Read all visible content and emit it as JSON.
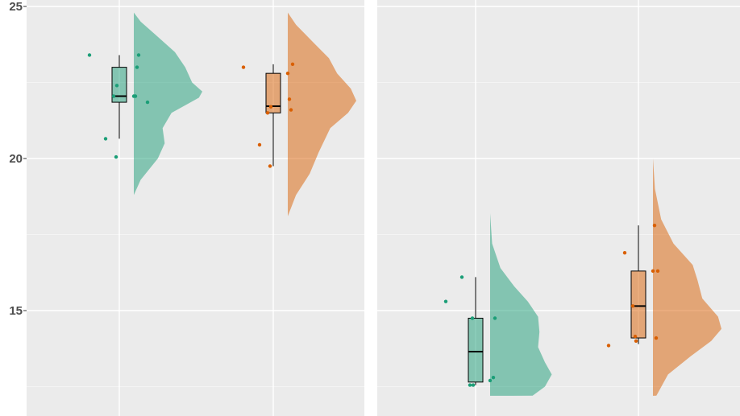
{
  "chart_data": {
    "type": "raincloud",
    "y_axis": {
      "ylim": [
        12.2,
        25.2
      ],
      "ticks": [
        15,
        20,
        25
      ],
      "tick_labels": [
        "15",
        "20",
        "25"
      ],
      "grid": true
    },
    "colors": {
      "green": "#1b9e77",
      "orange": "#d95f02",
      "panel_bg": "#ebebeb",
      "grid": "#ffffff"
    },
    "panels": [
      {
        "groups": [
          {
            "color": "green",
            "box": {
              "whisker_low": 20.65,
              "q1": 21.85,
              "median": 22.05,
              "q3": 23.0,
              "whisker_high": 23.4
            },
            "points": [
              23.4,
              22.4,
              22.05,
              20.65,
              20.05,
              23.4,
              23.0,
              22.05,
              22.05,
              21.85
            ],
            "density": [
              [
                18.8,
                0
              ],
              [
                19.3,
                0.1
              ],
              [
                20.0,
                0.35
              ],
              [
                20.5,
                0.45
              ],
              [
                21.0,
                0.42
              ],
              [
                21.5,
                0.55
              ],
              [
                22.0,
                0.95
              ],
              [
                22.2,
                1.0
              ],
              [
                22.5,
                0.85
              ],
              [
                23.0,
                0.75
              ],
              [
                23.5,
                0.6
              ],
              [
                24.0,
                0.35
              ],
              [
                24.5,
                0.1
              ],
              [
                24.8,
                0
              ]
            ]
          },
          {
            "color": "orange",
            "box": {
              "whisker_low": 19.75,
              "q1": 21.5,
              "median": 21.72,
              "q3": 22.8,
              "whisker_high": 23.1
            },
            "points": [
              23.0,
              21.7,
              21.5,
              20.45,
              19.75,
              23.1,
              21.6,
              22.8,
              21.95
            ],
            "density": [
              [
                18.1,
                0
              ],
              [
                18.8,
                0.12
              ],
              [
                19.5,
                0.32
              ],
              [
                20.2,
                0.45
              ],
              [
                21.0,
                0.62
              ],
              [
                21.5,
                0.88
              ],
              [
                21.9,
                1.0
              ],
              [
                22.3,
                0.92
              ],
              [
                22.8,
                0.72
              ],
              [
                23.3,
                0.6
              ],
              [
                23.8,
                0.38
              ],
              [
                24.4,
                0.12
              ],
              [
                24.8,
                0
              ]
            ]
          }
        ]
      },
      {
        "groups": [
          {
            "color": "green",
            "box": {
              "whisker_low": 12.55,
              "q1": 12.65,
              "median": 13.65,
              "q3": 14.75,
              "whisker_high": 16.1
            },
            "points": [
              15.3,
              12.55,
              12.55,
              16.1,
              14.75,
              14.75,
              12.8,
              12.7
            ],
            "density": [
              [
                12.2,
                0.62
              ],
              [
                12.5,
                0.8
              ],
              [
                12.9,
                0.9
              ],
              [
                13.3,
                0.8
              ],
              [
                13.8,
                0.7
              ],
              [
                14.3,
                0.72
              ],
              [
                14.8,
                0.7
              ],
              [
                15.3,
                0.55
              ],
              [
                15.8,
                0.35
              ],
              [
                16.4,
                0.15
              ],
              [
                17.2,
                0.03
              ],
              [
                18.2,
                0
              ]
            ]
          },
          {
            "color": "orange",
            "box": {
              "whisker_low": 13.9,
              "q1": 14.1,
              "median": 15.15,
              "q3": 16.3,
              "whisker_high": 17.8
            },
            "points": [
              13.85,
              14.0,
              15.15,
              16.9,
              14.15,
              16.3,
              14.1,
              16.3,
              17.8
            ],
            "density": [
              [
                12.2,
                0.05
              ],
              [
                12.9,
                0.22
              ],
              [
                13.5,
                0.55
              ],
              [
                14.0,
                0.85
              ],
              [
                14.4,
                1.0
              ],
              [
                14.8,
                0.95
              ],
              [
                15.4,
                0.72
              ],
              [
                16.0,
                0.65
              ],
              [
                16.5,
                0.58
              ],
              [
                17.2,
                0.3
              ],
              [
                18.0,
                0.12
              ],
              [
                19.0,
                0.03
              ],
              [
                20.0,
                0
              ]
            ]
          }
        ]
      }
    ]
  }
}
